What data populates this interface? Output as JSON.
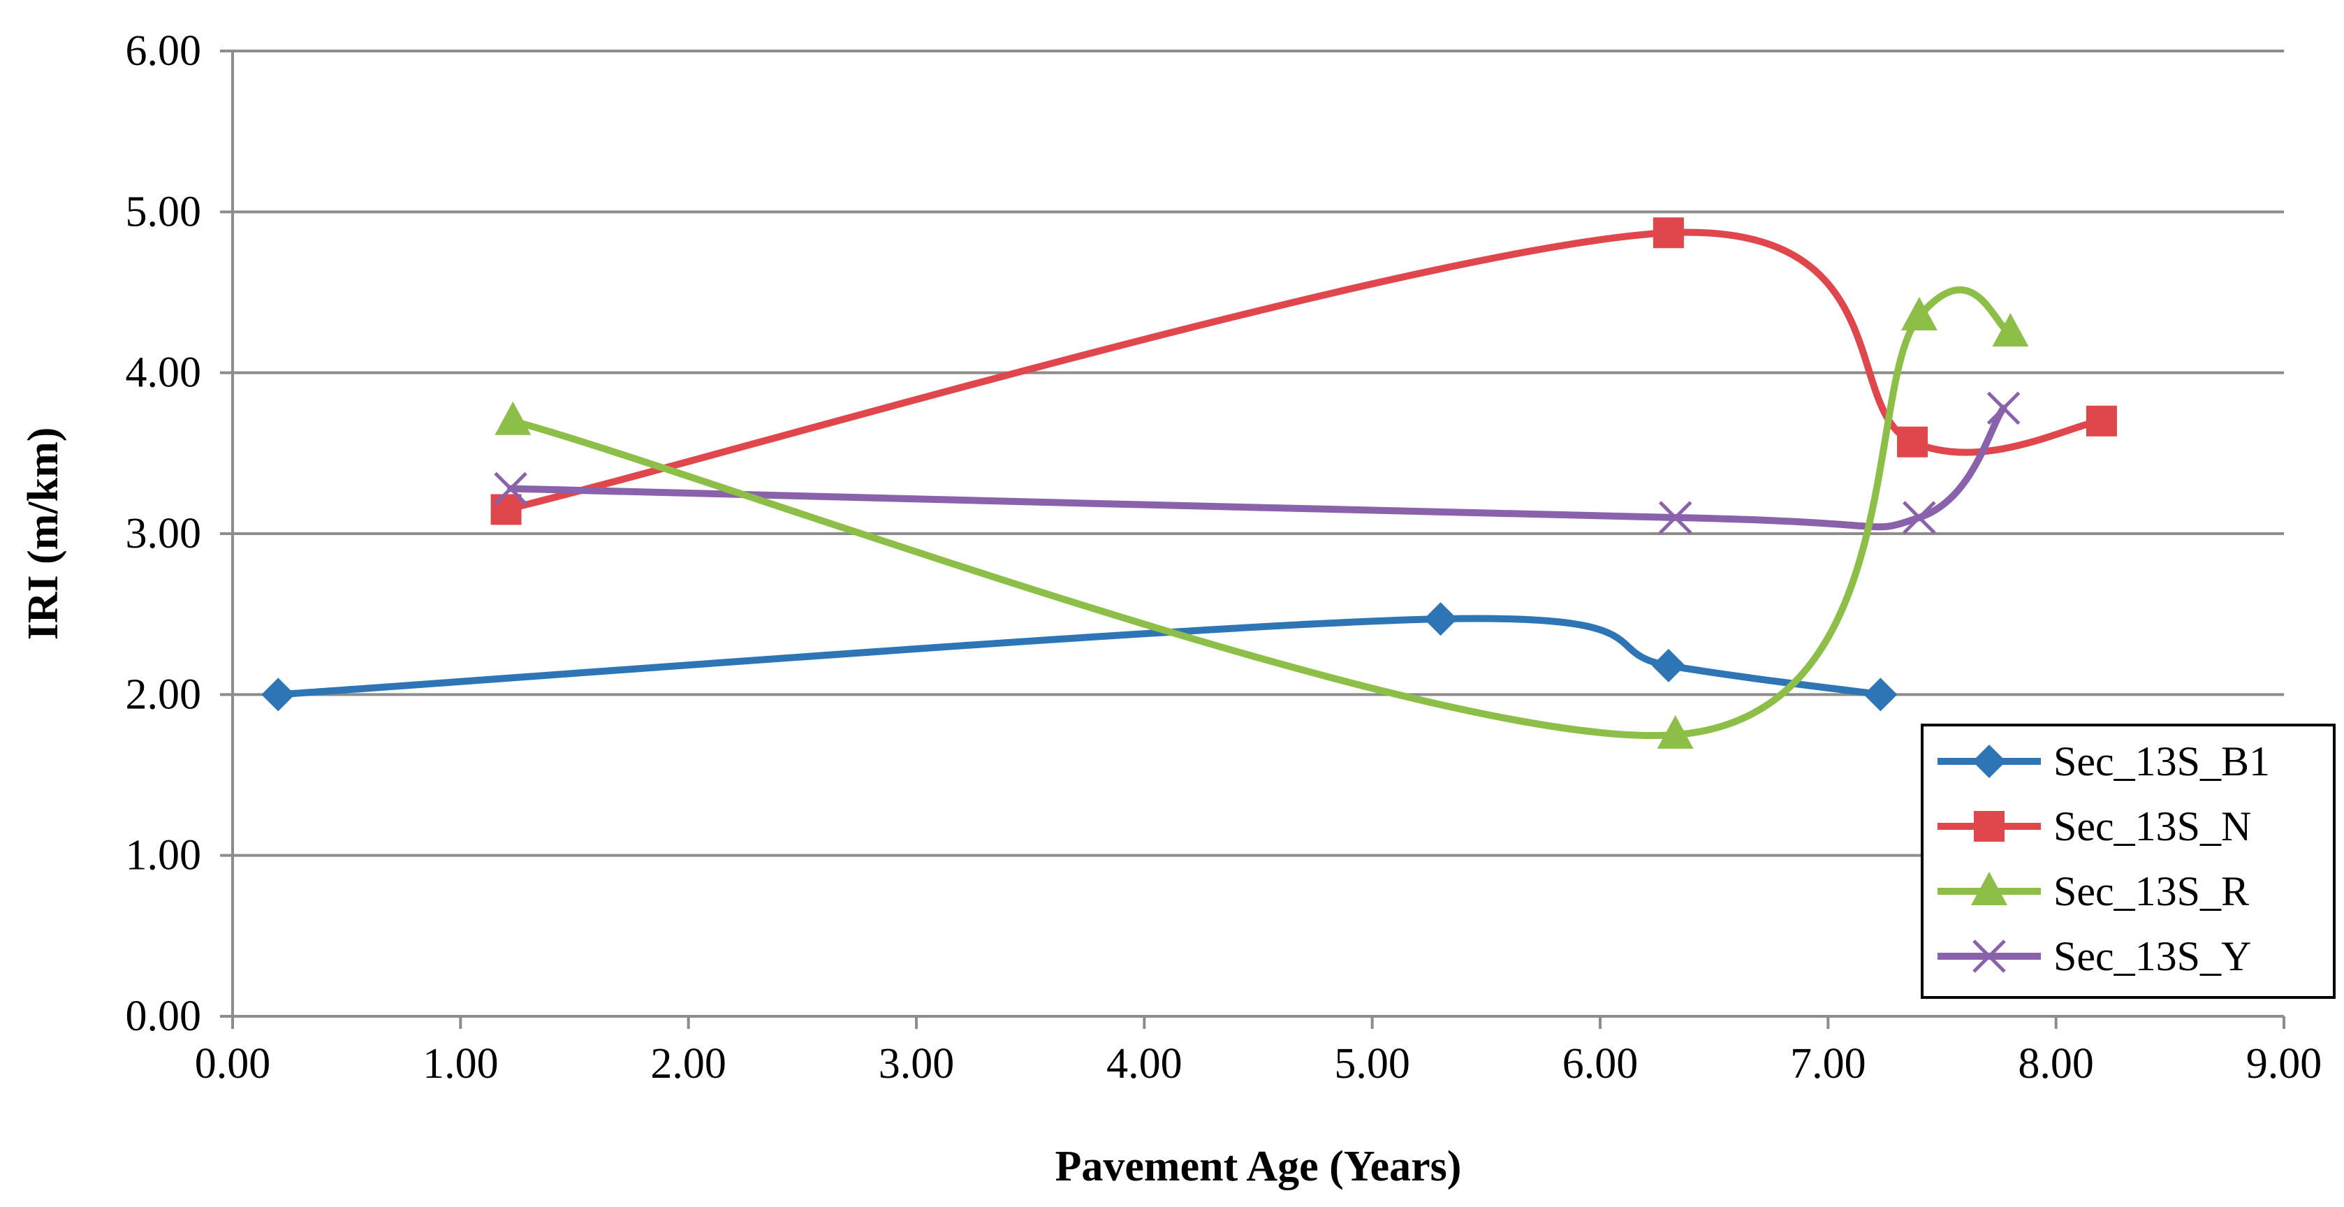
{
  "chart_data": {
    "type": "scatter",
    "title": "",
    "xlabel": "Pavement Age (Years)",
    "ylabel": "IRI (m/km)",
    "xlim": [
      0,
      9
    ],
    "ylim": [
      0,
      6
    ],
    "x_ticks": [
      "0.00",
      "1.00",
      "2.00",
      "3.00",
      "4.00",
      "5.00",
      "6.00",
      "7.00",
      "8.00",
      "9.00"
    ],
    "y_ticks": [
      "0.00",
      "1.00",
      "2.00",
      "3.00",
      "4.00",
      "5.00",
      "6.00"
    ],
    "grid": "horizontal",
    "legend_position": "bottom-right",
    "smoothed": true,
    "series": [
      {
        "name": "Sec_13S_B1",
        "color": "#2E75B6",
        "marker": "diamond",
        "points": [
          [
            0.2,
            2.0
          ],
          [
            5.3,
            2.47
          ],
          [
            6.3,
            2.18
          ],
          [
            7.23,
            2.0
          ]
        ]
      },
      {
        "name": "Sec_13S_N",
        "color": "#E0474C",
        "marker": "square",
        "points": [
          [
            1.2,
            3.15
          ],
          [
            6.3,
            4.87
          ],
          [
            7.37,
            3.57
          ],
          [
            8.2,
            3.7
          ]
        ]
      },
      {
        "name": "Sec_13S_R",
        "color": "#8DBE48",
        "marker": "triangle",
        "points": [
          [
            1.23,
            3.7
          ],
          [
            6.33,
            1.75
          ],
          [
            7.4,
            4.35
          ],
          [
            7.8,
            4.25
          ]
        ]
      },
      {
        "name": "Sec_13S_Y",
        "color": "#8A62AC",
        "marker": "x",
        "points": [
          [
            1.22,
            3.28
          ],
          [
            6.33,
            3.1
          ],
          [
            7.4,
            3.1
          ],
          [
            7.77,
            3.78
          ]
        ]
      }
    ]
  }
}
